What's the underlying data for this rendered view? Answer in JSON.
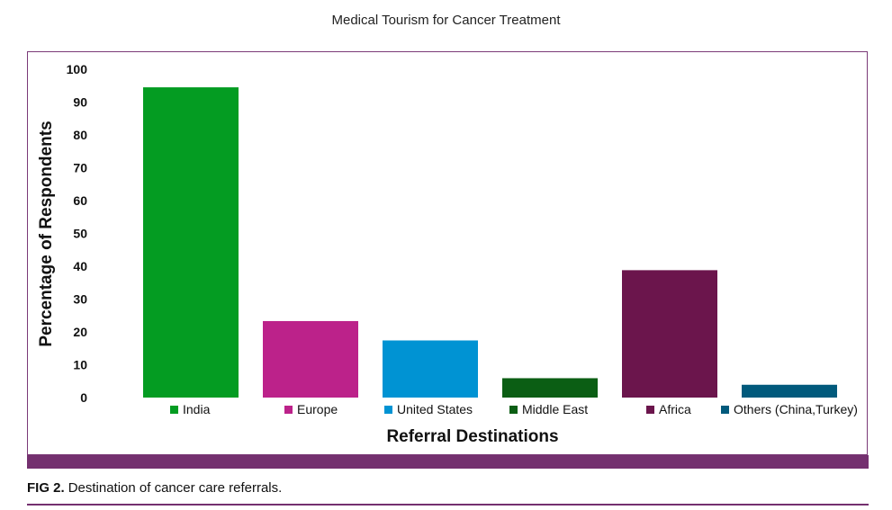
{
  "chart_data": {
    "type": "bar",
    "title": "Medical Tourism for Cancer Treatment",
    "xlabel": "Referral Destinations",
    "ylabel": "Percentage of Respondents",
    "ylim": [
      0,
      100
    ],
    "yticks": [
      0,
      10,
      20,
      30,
      40,
      50,
      60,
      70,
      80,
      90,
      100
    ],
    "categories": [
      "India",
      "Europe",
      "United States",
      "Middle East",
      "Africa",
      "Others (China,Turkey)"
    ],
    "values": [
      94.5,
      23.3,
      17.4,
      5.9,
      38.8,
      3.9
    ],
    "colors": [
      "#049c22",
      "#bc228a",
      "#0093d3",
      "#0b5e14",
      "#6b154c",
      "#015a7c"
    ],
    "legend": "bottom",
    "grid": false
  },
  "caption": {
    "label": "FIG 2.",
    "text": "Destination of cancer care referrals."
  }
}
